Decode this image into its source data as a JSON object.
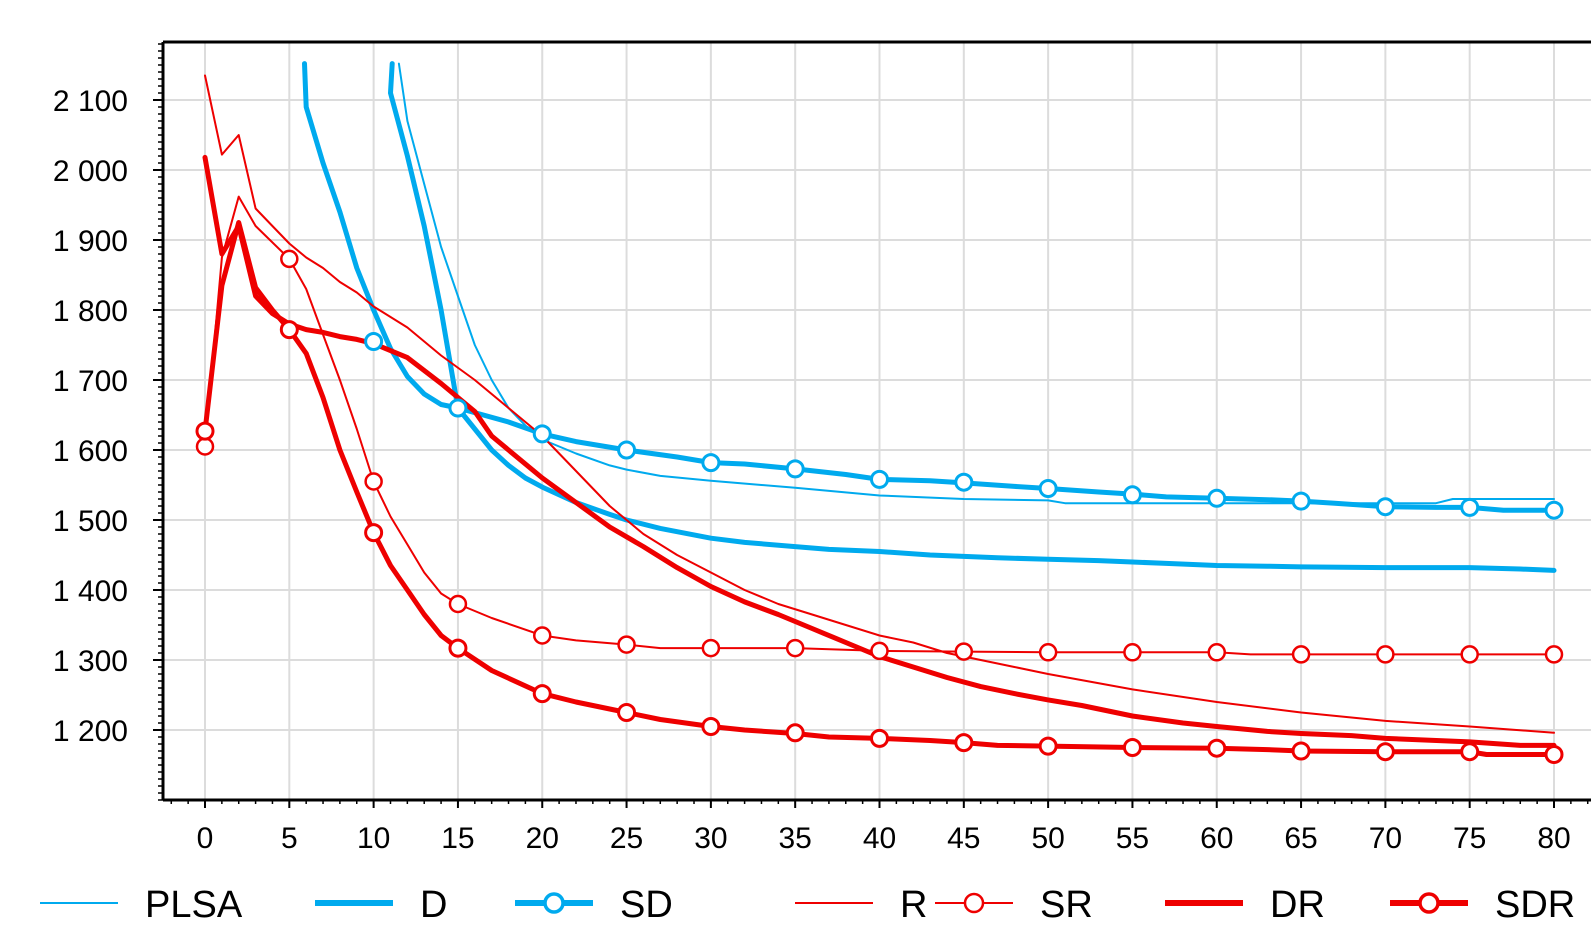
{
  "chart_data": {
    "type": "line",
    "title": "",
    "xlabel": "",
    "ylabel": "",
    "xlim": [
      0,
      80
    ],
    "ylim": [
      1100,
      2180
    ],
    "x_ticks": [
      0,
      5,
      10,
      15,
      20,
      25,
      30,
      35,
      40,
      45,
      50,
      55,
      60,
      65,
      70,
      75,
      80
    ],
    "x_tick_labels": [
      "0",
      "5",
      "10",
      "15",
      "20",
      "25",
      "30",
      "35",
      "40",
      "45",
      "50",
      "55",
      "60",
      "65",
      "70",
      "75",
      "80"
    ],
    "y_ticks": [
      1200,
      1300,
      1400,
      1500,
      1600,
      1700,
      1800,
      1900,
      2000,
      2100
    ],
    "y_tick_labels": [
      "1 200",
      "1 300",
      "1 400",
      "1 500",
      "1 600",
      "1 700",
      "1 800",
      "1 900",
      "2 000",
      "2 100"
    ],
    "grid": true,
    "legend_position": "bottom",
    "colors": {
      "blue": "#00aaee",
      "red": "#ee0000"
    },
    "series": [
      {
        "name": "PLSA",
        "color": "#00aaee",
        "width": 2,
        "marker": false,
        "points": [
          [
            11.5,
            2152
          ],
          [
            12,
            2070
          ],
          [
            13,
            1980
          ],
          [
            14,
            1890
          ],
          [
            15,
            1820
          ],
          [
            16,
            1750
          ],
          [
            17,
            1700
          ],
          [
            18,
            1660
          ],
          [
            19,
            1635
          ],
          [
            20,
            1615
          ],
          [
            22,
            1595
          ],
          [
            24,
            1578
          ],
          [
            25,
            1572
          ],
          [
            27,
            1563
          ],
          [
            30,
            1556
          ],
          [
            33,
            1550
          ],
          [
            35,
            1546
          ],
          [
            40,
            1535
          ],
          [
            45,
            1530
          ],
          [
            50,
            1528
          ],
          [
            51,
            1524
          ],
          [
            55,
            1524
          ],
          [
            60,
            1524
          ],
          [
            65,
            1524
          ],
          [
            70,
            1524
          ],
          [
            73,
            1524
          ],
          [
            74,
            1530
          ],
          [
            80,
            1530
          ]
        ]
      },
      {
        "name": "D",
        "color": "#00aaee",
        "width": 5,
        "marker": false,
        "points": [
          [
            5.9,
            2152
          ],
          [
            6,
            2090
          ],
          [
            7,
            2010
          ],
          [
            8,
            1940
          ],
          [
            9,
            1860
          ],
          [
            10,
            1800
          ],
          [
            11,
            1745
          ],
          [
            12,
            1705
          ],
          [
            13,
            1680
          ],
          [
            14,
            1665
          ],
          [
            15,
            1660
          ],
          [
            16,
            1630
          ],
          [
            17,
            1600
          ],
          [
            18,
            1578
          ],
          [
            19,
            1560
          ],
          [
            20,
            1547
          ],
          [
            22,
            1525
          ],
          [
            24,
            1508
          ],
          [
            25,
            1500
          ],
          [
            27,
            1488
          ],
          [
            30,
            1474
          ],
          [
            32,
            1468
          ],
          [
            35,
            1462
          ],
          [
            37,
            1458
          ],
          [
            40,
            1455
          ],
          [
            43,
            1450
          ],
          [
            45,
            1448
          ],
          [
            47,
            1446
          ],
          [
            50,
            1444
          ],
          [
            53,
            1442
          ],
          [
            55,
            1440
          ],
          [
            57,
            1438
          ],
          [
            60,
            1435
          ],
          [
            63,
            1434
          ],
          [
            65,
            1433
          ],
          [
            70,
            1432
          ],
          [
            75,
            1432
          ],
          [
            78,
            1430
          ],
          [
            80,
            1428
          ]
        ]
      },
      {
        "name": "SD",
        "color": "#00aaee",
        "width": 5,
        "marker": true,
        "points": [
          [
            11.1,
            2152
          ],
          [
            11,
            2110
          ],
          [
            12,
            2020
          ],
          [
            13,
            1920
          ],
          [
            14,
            1800
          ],
          [
            15,
            1660
          ],
          [
            18,
            1640
          ],
          [
            20,
            1623
          ],
          [
            22,
            1612
          ],
          [
            25,
            1600
          ],
          [
            28,
            1590
          ],
          [
            30,
            1582
          ],
          [
            32,
            1580
          ],
          [
            35,
            1573
          ],
          [
            38,
            1565
          ],
          [
            40,
            1558
          ],
          [
            43,
            1556
          ],
          [
            45,
            1553
          ],
          [
            48,
            1548
          ],
          [
            50,
            1545
          ],
          [
            53,
            1540
          ],
          [
            55,
            1537
          ],
          [
            57,
            1533
          ],
          [
            60,
            1531
          ],
          [
            63,
            1529
          ],
          [
            65,
            1527
          ],
          [
            67,
            1524
          ],
          [
            70,
            1519
          ],
          [
            73,
            1518
          ],
          [
            75,
            1518
          ],
          [
            77,
            1514
          ],
          [
            80,
            1514
          ]
        ],
        "markers": [
          [
            10,
            1755
          ],
          [
            15,
            1660
          ],
          [
            20,
            1623
          ],
          [
            25,
            1600
          ],
          [
            30,
            1582
          ],
          [
            35,
            1573
          ],
          [
            40,
            1558
          ],
          [
            45,
            1554
          ],
          [
            50,
            1545
          ],
          [
            55,
            1536
          ],
          [
            60,
            1531
          ],
          [
            65,
            1527
          ],
          [
            70,
            1519
          ],
          [
            75,
            1518
          ],
          [
            80,
            1514
          ]
        ]
      },
      {
        "name": "R",
        "color": "#ee0000",
        "width": 2,
        "marker": false,
        "points": [
          [
            0,
            2135
          ],
          [
            1,
            2022
          ],
          [
            2,
            2050
          ],
          [
            3,
            1945
          ],
          [
            4,
            1920
          ],
          [
            5,
            1895
          ],
          [
            6,
            1875
          ],
          [
            7,
            1860
          ],
          [
            8,
            1840
          ],
          [
            9,
            1825
          ],
          [
            10,
            1805
          ],
          [
            12,
            1775
          ],
          [
            14,
            1735
          ],
          [
            16,
            1700
          ],
          [
            18,
            1660
          ],
          [
            20,
            1620
          ],
          [
            22,
            1570
          ],
          [
            24,
            1520
          ],
          [
            26,
            1480
          ],
          [
            28,
            1450
          ],
          [
            30,
            1425
          ],
          [
            32,
            1400
          ],
          [
            34,
            1380
          ],
          [
            36,
            1365
          ],
          [
            38,
            1350
          ],
          [
            40,
            1335
          ],
          [
            42,
            1325
          ],
          [
            44,
            1310
          ],
          [
            46,
            1300
          ],
          [
            48,
            1290
          ],
          [
            50,
            1280
          ],
          [
            55,
            1258
          ],
          [
            60,
            1240
          ],
          [
            65,
            1225
          ],
          [
            70,
            1213
          ],
          [
            75,
            1205
          ],
          [
            80,
            1196
          ]
        ]
      },
      {
        "name": "SR",
        "color": "#ee0000",
        "width": 2,
        "marker": true,
        "points": [
          [
            0,
            1605
          ],
          [
            1,
            1875
          ],
          [
            2,
            1962
          ],
          [
            3,
            1920
          ],
          [
            5,
            1873
          ],
          [
            6,
            1830
          ],
          [
            7,
            1765
          ],
          [
            8,
            1700
          ],
          [
            9,
            1630
          ],
          [
            10,
            1555
          ],
          [
            11,
            1505
          ],
          [
            12,
            1465
          ],
          [
            13,
            1425
          ],
          [
            14,
            1395
          ],
          [
            15,
            1380
          ],
          [
            17,
            1360
          ],
          [
            20,
            1335
          ],
          [
            22,
            1328
          ],
          [
            25,
            1322
          ],
          [
            27,
            1317
          ],
          [
            30,
            1317
          ],
          [
            35,
            1317
          ],
          [
            40,
            1313
          ],
          [
            45,
            1312
          ],
          [
            50,
            1311
          ],
          [
            55,
            1311
          ],
          [
            60,
            1311
          ],
          [
            62,
            1308
          ],
          [
            65,
            1308
          ],
          [
            70,
            1308
          ],
          [
            75,
            1308
          ],
          [
            80,
            1308
          ]
        ],
        "markers": [
          [
            0,
            1605
          ],
          [
            5,
            1873
          ],
          [
            10,
            1555
          ],
          [
            15,
            1380
          ],
          [
            20,
            1335
          ],
          [
            25,
            1322
          ],
          [
            30,
            1317
          ],
          [
            35,
            1317
          ],
          [
            40,
            1313
          ],
          [
            45,
            1312
          ],
          [
            50,
            1311
          ],
          [
            55,
            1311
          ],
          [
            60,
            1311
          ],
          [
            65,
            1308
          ],
          [
            70,
            1308
          ],
          [
            75,
            1308
          ],
          [
            80,
            1308
          ]
        ]
      },
      {
        "name": "DR",
        "color": "#ee0000",
        "width": 5,
        "marker": false,
        "points": [
          [
            0,
            2018
          ],
          [
            1,
            1880
          ],
          [
            2,
            1920
          ],
          [
            3,
            1820
          ],
          [
            4,
            1795
          ],
          [
            5,
            1780
          ],
          [
            6,
            1772
          ],
          [
            7,
            1768
          ],
          [
            8,
            1762
          ],
          [
            9,
            1758
          ],
          [
            10,
            1752
          ],
          [
            12,
            1732
          ],
          [
            14,
            1695
          ],
          [
            16,
            1655
          ],
          [
            17,
            1620
          ],
          [
            18,
            1600
          ],
          [
            20,
            1560
          ],
          [
            22,
            1525
          ],
          [
            24,
            1490
          ],
          [
            26,
            1462
          ],
          [
            28,
            1432
          ],
          [
            30,
            1405
          ],
          [
            32,
            1383
          ],
          [
            34,
            1365
          ],
          [
            36,
            1345
          ],
          [
            38,
            1325
          ],
          [
            40,
            1305
          ],
          [
            42,
            1290
          ],
          [
            44,
            1275
          ],
          [
            46,
            1262
          ],
          [
            48,
            1252
          ],
          [
            50,
            1243
          ],
          [
            52,
            1235
          ],
          [
            55,
            1220
          ],
          [
            58,
            1210
          ],
          [
            60,
            1205
          ],
          [
            63,
            1198
          ],
          [
            65,
            1195
          ],
          [
            68,
            1192
          ],
          [
            70,
            1188
          ],
          [
            75,
            1183
          ],
          [
            78,
            1178
          ],
          [
            80,
            1178
          ]
        ]
      },
      {
        "name": "SDR",
        "color": "#ee0000",
        "width": 5,
        "marker": true,
        "points": [
          [
            0,
            1627
          ],
          [
            1,
            1835
          ],
          [
            2,
            1925
          ],
          [
            3,
            1832
          ],
          [
            4,
            1800
          ],
          [
            5,
            1772
          ],
          [
            6,
            1738
          ],
          [
            7,
            1675
          ],
          [
            8,
            1600
          ],
          [
            9,
            1540
          ],
          [
            10,
            1482
          ],
          [
            11,
            1435
          ],
          [
            12,
            1400
          ],
          [
            13,
            1365
          ],
          [
            14,
            1335
          ],
          [
            15,
            1317
          ],
          [
            17,
            1285
          ],
          [
            20,
            1252
          ],
          [
            22,
            1240
          ],
          [
            25,
            1225
          ],
          [
            27,
            1215
          ],
          [
            30,
            1205
          ],
          [
            32,
            1200
          ],
          [
            35,
            1195
          ],
          [
            37,
            1190
          ],
          [
            40,
            1188
          ],
          [
            43,
            1185
          ],
          [
            45,
            1182
          ],
          [
            47,
            1178
          ],
          [
            50,
            1177
          ],
          [
            55,
            1175
          ],
          [
            60,
            1174
          ],
          [
            63,
            1172
          ],
          [
            65,
            1170
          ],
          [
            70,
            1169
          ],
          [
            75,
            1169
          ],
          [
            76,
            1165
          ],
          [
            80,
            1165
          ]
        ],
        "markers": [
          [
            0,
            1627
          ],
          [
            5,
            1772
          ],
          [
            10,
            1482
          ],
          [
            15,
            1317
          ],
          [
            20,
            1252
          ],
          [
            25,
            1225
          ],
          [
            30,
            1205
          ],
          [
            35,
            1196
          ],
          [
            40,
            1188
          ],
          [
            45,
            1182
          ],
          [
            50,
            1177
          ],
          [
            55,
            1175
          ],
          [
            60,
            1174
          ],
          [
            65,
            1170
          ],
          [
            70,
            1169
          ],
          [
            75,
            1169
          ],
          [
            80,
            1165
          ]
        ]
      }
    ]
  }
}
